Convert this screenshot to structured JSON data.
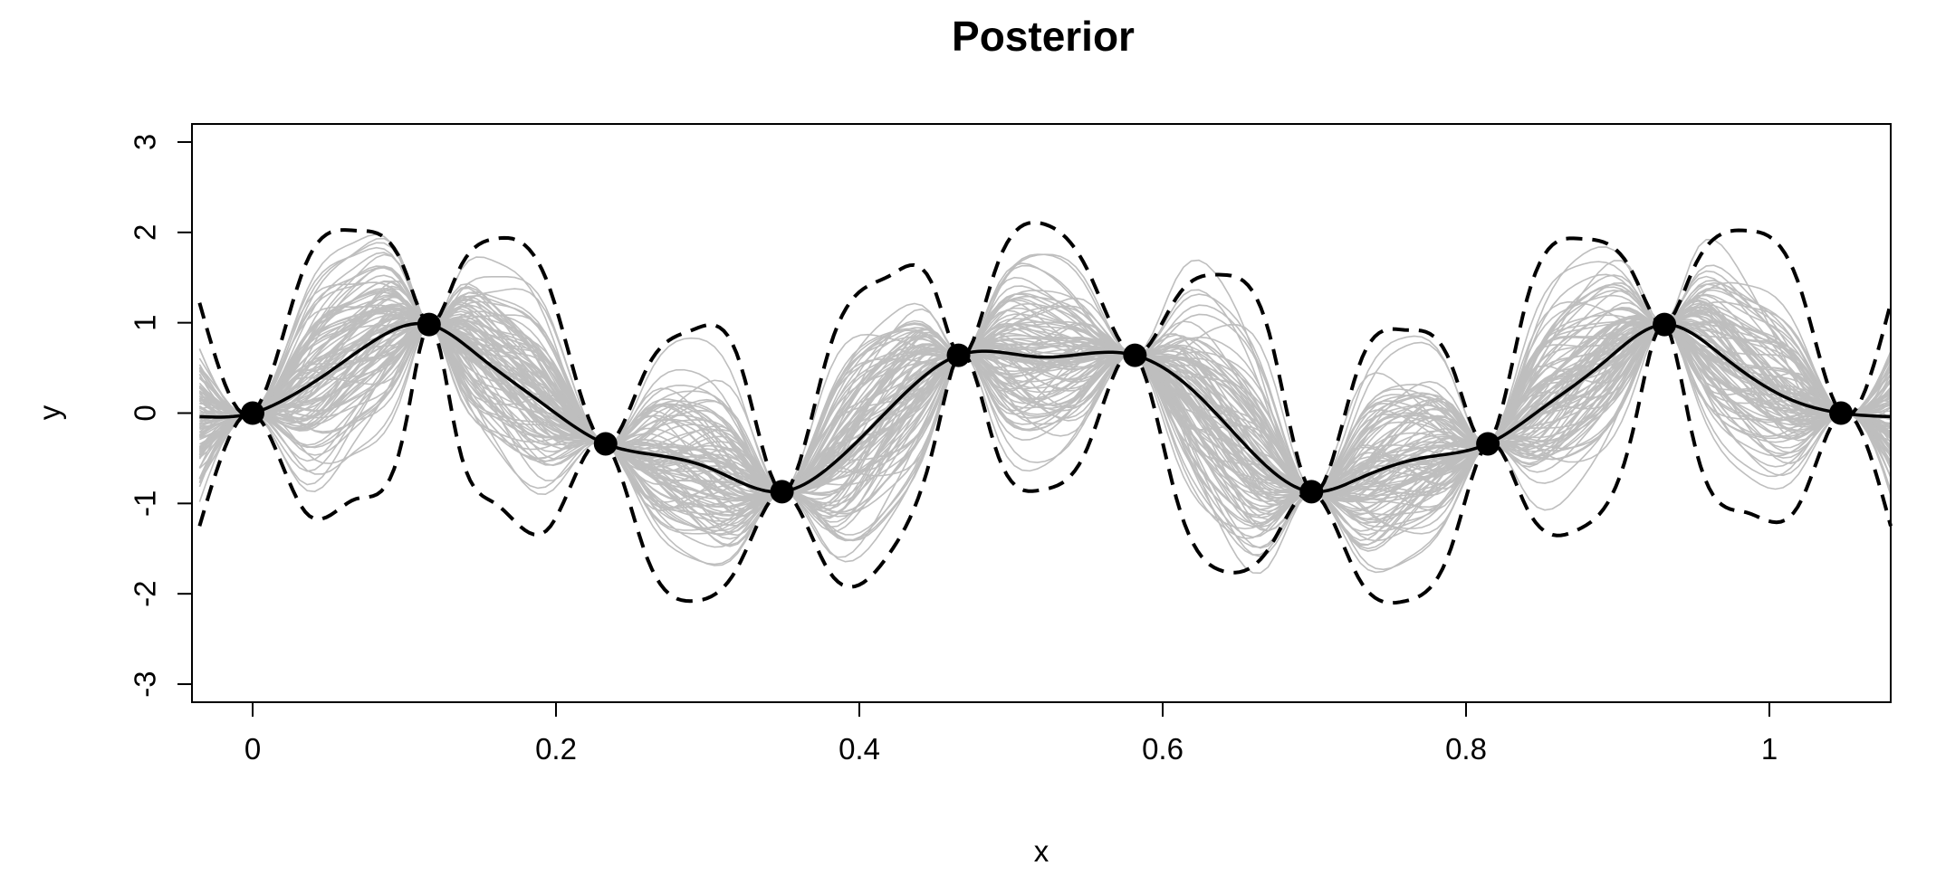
{
  "chart_data": {
    "type": "line",
    "title": "Posterior",
    "xlabel": "x",
    "ylabel": "y",
    "xlim": [
      -0.04,
      1.08
    ],
    "ylim": [
      -3.2,
      3.2
    ],
    "xticks": [
      0,
      0.2,
      0.4,
      0.6,
      0.8,
      1
    ],
    "xtick_labels": [
      "0",
      "0.2",
      "0.4",
      "0.6",
      "0.8",
      "1"
    ],
    "yticks": [
      -3,
      -2,
      -1,
      0,
      1,
      2,
      3
    ],
    "ytick_labels": [
      "-3",
      "-2",
      "-1",
      "0",
      "1",
      "2",
      "3"
    ],
    "grid": false,
    "legend": "none",
    "colors": {
      "samples": "#bebebe",
      "mean": "#000000",
      "band": "#000000",
      "points": "#000000"
    },
    "observations": {
      "x": [
        0,
        0.1163,
        0.2327,
        0.349,
        0.4654,
        0.5817,
        0.6981,
        0.8144,
        0.9308,
        1.0472
      ],
      "y": [
        0,
        0.98,
        -0.34,
        -0.87,
        0.64,
        0.64,
        -0.87,
        -0.34,
        0.98,
        0
      ]
    },
    "series": [
      {
        "kind": "mean",
        "x": [
          -0.035,
          0,
          0.02,
          0.05,
          0.08,
          0.1163,
          0.15,
          0.19,
          0.2327,
          0.26,
          0.3,
          0.349,
          0.38,
          0.42,
          0.4654,
          0.52,
          0.5817,
          0.62,
          0.66,
          0.6981,
          0.73,
          0.77,
          0.8144,
          0.85,
          0.89,
          0.9308,
          0.97,
          1.01,
          1.0472,
          1.08
        ],
        "y": [
          -0.04,
          0,
          0.14,
          0.45,
          0.8,
          0.98,
          0.62,
          0.12,
          -0.34,
          -0.45,
          -0.6,
          -0.87,
          -0.6,
          0.05,
          0.64,
          0.62,
          0.64,
          0.25,
          -0.45,
          -0.87,
          -0.72,
          -0.5,
          -0.34,
          0.05,
          0.55,
          0.98,
          0.62,
          0.18,
          0,
          -0.04
        ]
      },
      {
        "kind": "upper-band",
        "x": [
          -0.035,
          0,
          0.035,
          0.068,
          0.1,
          0.1163,
          0.135,
          0.16,
          0.195,
          0.2327,
          0.26,
          0.29,
          0.32,
          0.349,
          0.38,
          0.42,
          0.45,
          0.4654,
          0.49,
          0.52,
          0.55,
          0.5817,
          0.61,
          0.64,
          0.67,
          0.6981,
          0.73,
          0.76,
          0.79,
          0.8144,
          0.84,
          0.875,
          0.91,
          0.9308,
          0.95,
          0.985,
          1.02,
          1.0472,
          1.08
        ],
        "y": [
          1.22,
          0,
          1.65,
          2.02,
          1.6,
          0.98,
          1.55,
          1.93,
          1.42,
          -0.34,
          0.5,
          0.92,
          0.62,
          -0.87,
          0.7,
          1.52,
          1.35,
          0.64,
          1.6,
          2.1,
          1.6,
          0.64,
          1.3,
          1.53,
          0.9,
          -0.87,
          0.55,
          0.92,
          0.55,
          -0.34,
          1.25,
          1.93,
          1.55,
          0.98,
          1.6,
          2.02,
          1.4,
          0,
          1.22
        ]
      },
      {
        "kind": "lower-band",
        "x": [
          -0.035,
          0,
          0.035,
          0.068,
          0.1,
          0.1163,
          0.135,
          0.16,
          0.195,
          0.2327,
          0.26,
          0.29,
          0.32,
          0.349,
          0.38,
          0.42,
          0.45,
          0.4654,
          0.49,
          0.52,
          0.55,
          0.5817,
          0.61,
          0.64,
          0.67,
          0.6981,
          0.73,
          0.76,
          0.79,
          0.8144,
          0.84,
          0.875,
          0.91,
          0.9308,
          0.95,
          0.985,
          1.02,
          1.0472,
          1.08
        ],
        "y": [
          -1.25,
          0,
          -1.1,
          -0.95,
          -0.2,
          0.98,
          -0.3,
          -1.0,
          -1.28,
          -0.34,
          -1.6,
          -2.08,
          -1.7,
          -0.87,
          -1.75,
          -1.55,
          -0.3,
          0.64,
          -0.4,
          -0.85,
          -0.4,
          0.64,
          -1.0,
          -1.75,
          -1.5,
          -0.87,
          -1.85,
          -2.08,
          -1.5,
          -0.34,
          -1.05,
          -1.28,
          -0.2,
          0.98,
          -0.3,
          -1.1,
          -1.0,
          0,
          -1.25
        ]
      }
    ]
  }
}
